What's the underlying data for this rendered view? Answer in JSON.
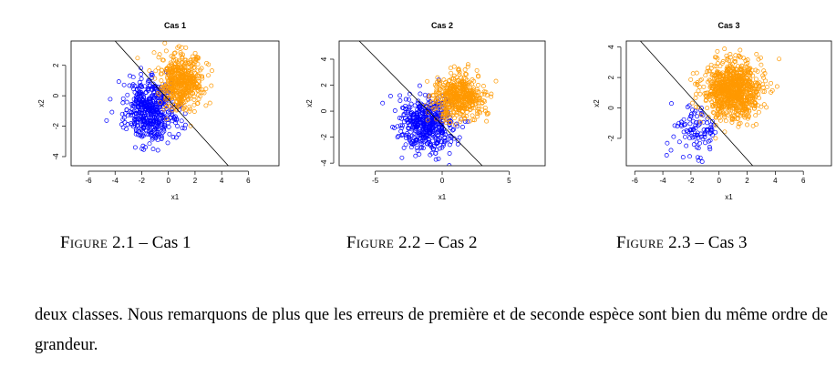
{
  "chart_data": [
    {
      "type": "scatter",
      "title": "Cas 1",
      "xlabel": "x1",
      "ylabel": "x2",
      "xlim": [
        -7.3,
        8.3
      ],
      "ylim": [
        -4.6,
        3.6
      ],
      "xticks": [
        -6,
        -4,
        -2,
        0,
        2,
        4,
        6
      ],
      "yticks": [
        -4,
        -2,
        0,
        2
      ],
      "series": [
        {
          "color": "#0000ff",
          "center": [
            -1.3,
            -1.0
          ],
          "spread": [
            1.0,
            1.0
          ],
          "n": 500
        },
        {
          "color": "#ff9900",
          "center": [
            1.0,
            1.0
          ],
          "spread": [
            0.8,
            0.9
          ],
          "n": 500
        }
      ],
      "boundary": {
        "x": [
          -4.0,
          4.5
        ],
        "y": [
          3.6,
          -4.6
        ]
      }
    },
    {
      "type": "scatter",
      "title": "Cas 2",
      "xlabel": "x1",
      "ylabel": "x2",
      "xlim": [
        -7.7,
        7.7
      ],
      "ylim": [
        -4.2,
        5.4
      ],
      "xticks": [
        -5,
        0,
        5
      ],
      "yticks": [
        -4,
        -2,
        0,
        2,
        4
      ],
      "series": [
        {
          "color": "#0000ff",
          "center": [
            -1.2,
            -1.1
          ],
          "spread": [
            1.0,
            1.0
          ],
          "n": 500
        },
        {
          "color": "#ff9900",
          "center": [
            1.3,
            1.1
          ],
          "spread": [
            1.0,
            0.8
          ],
          "n": 500
        }
      ],
      "boundary": {
        "x": [
          -6.2,
          3.0
        ],
        "y": [
          5.4,
          -4.2
        ]
      }
    },
    {
      "type": "scatter",
      "title": "Cas 3",
      "xlabel": "x1",
      "ylabel": "x2",
      "xlim": [
        -6.6,
        8.0
      ],
      "ylim": [
        -3.8,
        4.4
      ],
      "xticks": [
        -6,
        -4,
        -2,
        0,
        2,
        4,
        6
      ],
      "yticks": [
        -2,
        0,
        2,
        4
      ],
      "series": [
        {
          "color": "#0000ff",
          "center": [
            -1.6,
            -1.6
          ],
          "spread": [
            0.8,
            0.9
          ],
          "n": 100
        },
        {
          "color": "#ff9900",
          "center": [
            1.0,
            1.2
          ],
          "spread": [
            1.0,
            0.9
          ],
          "n": 900
        }
      ],
      "boundary": {
        "x": [
          -5.6,
          2.4
        ],
        "y": [
          4.4,
          -3.8
        ]
      }
    }
  ],
  "captions": [
    {
      "label": "Figure 2.1",
      "sep": " – ",
      "text": "Cas 1"
    },
    {
      "label": "Figure 2.2",
      "sep": " – ",
      "text": "Cas 2"
    },
    {
      "label": "Figure 2.3",
      "sep": " – ",
      "text": "Cas 3"
    }
  ],
  "paragraph": "deux classes. Nous remarquons de plus que les erreurs de première et de seconde espèce sont bien du même ordre de grandeur."
}
